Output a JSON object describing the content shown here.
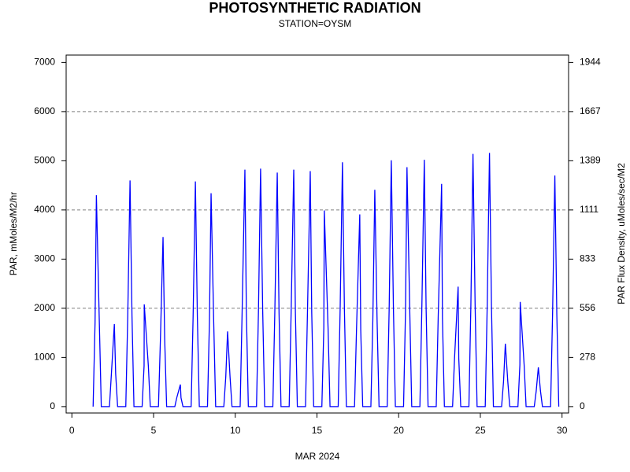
{
  "chart_data": {
    "type": "line",
    "title": "PHOTOSYNTHETIC RADIATION",
    "subtitle": "STATION=OYSM",
    "x_label": "MAR 2024",
    "y_label": "PAR, mMoles/M2/hr",
    "y2_label": "PAR Flux Density, uMoles/sec/M2",
    "xlim": [
      -0.35,
      30.4
    ],
    "xticks": [
      0,
      5,
      10,
      15,
      20,
      25,
      30
    ],
    "ylim": [
      -130,
      7150
    ],
    "yticks": [
      0,
      1000,
      2000,
      3000,
      4000,
      5000,
      6000,
      7000
    ],
    "y2lim": [
      -36.1,
      1986.1
    ],
    "y2ticks": [
      {
        "value": 0,
        "label": "0"
      },
      {
        "value": 277.8,
        "label": "278"
      },
      {
        "value": 555.6,
        "label": "556"
      },
      {
        "value": 833.3,
        "label": "833"
      },
      {
        "value": 1111.1,
        "label": "1111"
      },
      {
        "value": 1388.9,
        "label": "1389"
      },
      {
        "value": 1666.7,
        "label": "1667"
      },
      {
        "value": 1944.4,
        "label": "1944"
      }
    ],
    "grid_y": [
      2000,
      4000,
      6000
    ],
    "series": [
      {
        "name": "PAR",
        "color": "#0000ff",
        "x": [
          1.3,
          1.42,
          1.5,
          1.68,
          1.8,
          2.3,
          2.42,
          2.6,
          2.68,
          2.8,
          3.3,
          3.42,
          3.56,
          3.68,
          3.8,
          4.3,
          4.42,
          4.43,
          4.68,
          4.8,
          5.3,
          5.42,
          5.58,
          5.68,
          5.8,
          6.3,
          6.42,
          6.64,
          6.68,
          6.8,
          7.3,
          7.42,
          7.56,
          7.68,
          7.8,
          8.3,
          8.42,
          8.52,
          8.68,
          8.8,
          9.3,
          9.42,
          9.53,
          9.68,
          9.8,
          10.3,
          10.42,
          10.59,
          10.68,
          10.8,
          11.3,
          11.42,
          11.55,
          11.68,
          11.8,
          12.3,
          12.42,
          12.57,
          12.68,
          12.8,
          13.3,
          13.42,
          13.58,
          13.68,
          13.8,
          14.3,
          14.42,
          14.59,
          14.68,
          14.8,
          15.3,
          15.42,
          15.45,
          15.68,
          15.8,
          16.3,
          16.42,
          16.56,
          16.68,
          16.8,
          17.3,
          17.42,
          17.62,
          17.68,
          17.8,
          18.3,
          18.42,
          18.54,
          18.68,
          18.8,
          19.3,
          19.42,
          19.55,
          19.68,
          19.8,
          20.3,
          20.42,
          20.51,
          20.68,
          20.8,
          21.3,
          21.42,
          21.57,
          21.68,
          21.8,
          22.3,
          22.42,
          22.63,
          22.68,
          22.8,
          23.3,
          23.42,
          23.64,
          23.68,
          23.8,
          24.3,
          24.42,
          24.55,
          24.68,
          24.8,
          25.3,
          25.42,
          25.56,
          25.68,
          25.8,
          26.3,
          26.42,
          26.53,
          26.68,
          26.8,
          27.3,
          27.42,
          27.44,
          27.68,
          27.8,
          28.3,
          28.42,
          28.55,
          28.68,
          28.8,
          29.3,
          29.42,
          29.56,
          29.68,
          29.8
        ],
        "values": [
          0,
          1720,
          4300,
          1720,
          0,
          0,
          670,
          1680,
          670,
          0,
          0,
          1840,
          4600,
          1840,
          0,
          0,
          830,
          2080,
          830,
          0,
          0,
          1380,
          3450,
          1380,
          0,
          0,
          180,
          450,
          180,
          0,
          0,
          1830,
          4580,
          1830,
          0,
          0,
          1740,
          4340,
          1740,
          0,
          0,
          610,
          1530,
          610,
          0,
          0,
          1930,
          4820,
          1930,
          0,
          0,
          1940,
          4840,
          1940,
          0,
          0,
          1900,
          4760,
          1900,
          0,
          0,
          1930,
          4820,
          1930,
          0,
          0,
          1920,
          4790,
          1920,
          0,
          0,
          1600,
          3990,
          1600,
          0,
          0,
          1990,
          4970,
          1990,
          0,
          0,
          1560,
          3910,
          1560,
          0,
          0,
          1760,
          4410,
          1760,
          0,
          0,
          2000,
          5010,
          2000,
          0,
          0,
          1950,
          4870,
          1950,
          0,
          0,
          2010,
          5020,
          2010,
          0,
          0,
          1810,
          4530,
          1810,
          0,
          0,
          980,
          2440,
          980,
          0,
          0,
          2060,
          5140,
          2060,
          0,
          0,
          2060,
          5160,
          2060,
          0,
          0,
          510,
          1280,
          510,
          0,
          0,
          850,
          2130,
          850,
          0,
          0,
          320,
          800,
          320,
          0,
          0,
          1880,
          4700,
          1880,
          0
        ]
      }
    ]
  }
}
